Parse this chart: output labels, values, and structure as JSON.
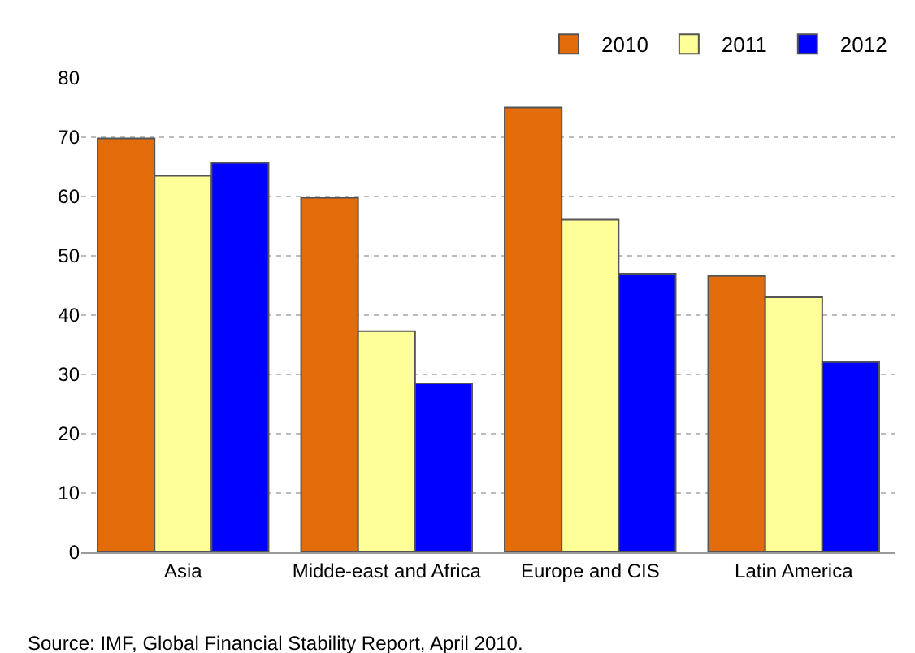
{
  "chart_data": {
    "type": "bar",
    "categories": [
      "Asia",
      "Midde-east and Africa",
      "Europe and CIS",
      "Latin America"
    ],
    "series": [
      {
        "name": "2010",
        "color": "#e36c0a",
        "values": [
          69.8,
          59.8,
          75.0,
          46.6
        ]
      },
      {
        "name": "2011",
        "color": "#ffff99",
        "values": [
          63.5,
          37.3,
          56.1,
          43.0
        ]
      },
      {
        "name": "2012",
        "color": "#0000ff",
        "values": [
          65.7,
          28.5,
          47.0,
          32.1
        ]
      }
    ],
    "ylim": [
      0,
      80
    ],
    "yticks": [
      0,
      10,
      20,
      30,
      40,
      50,
      60,
      70,
      80
    ],
    "grid": "y",
    "legend": "top right",
    "annotations": [
      "Source: IMF, Global Financial Stability Report, April 2010."
    ]
  }
}
